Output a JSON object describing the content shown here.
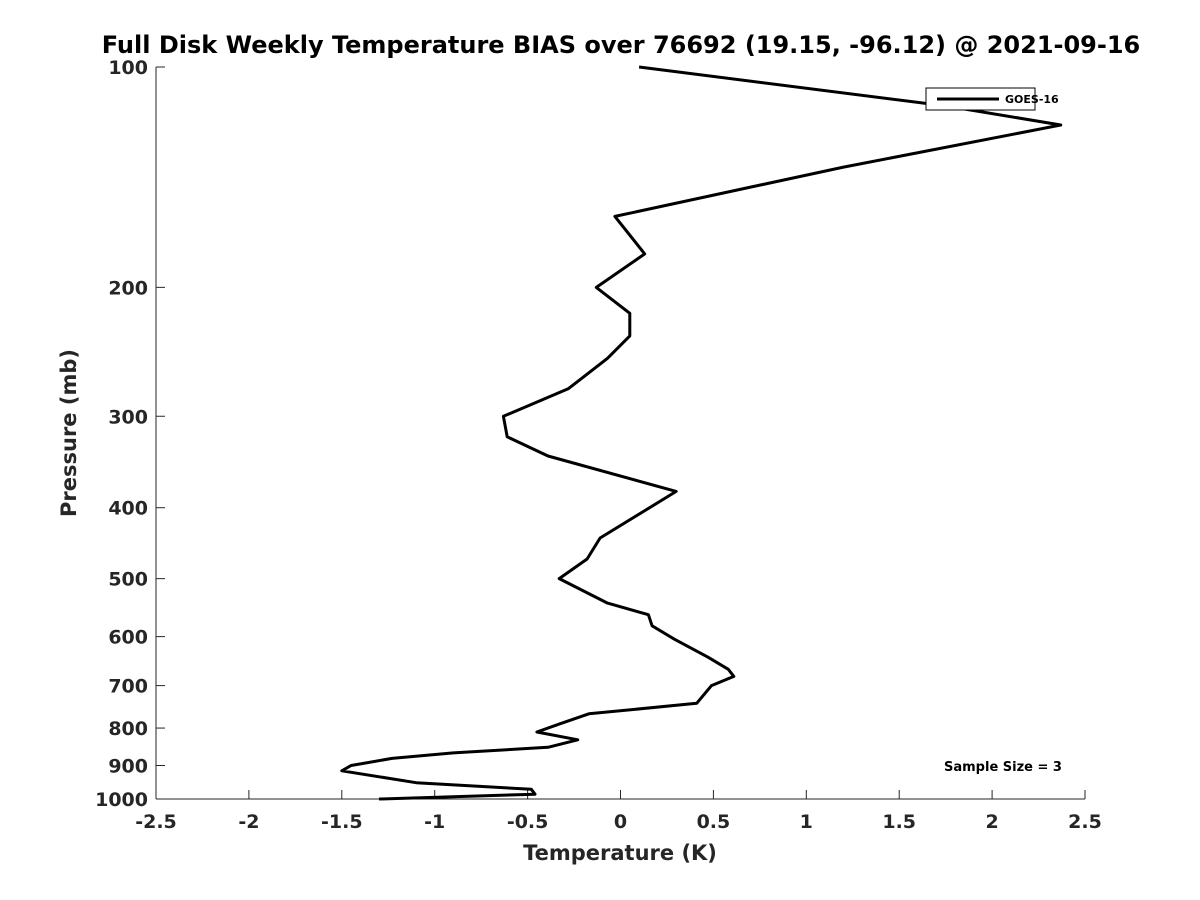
{
  "chart_data": {
    "type": "line",
    "title": "Full Disk Weekly Temperature BIAS over 76692 (19.15, -96.12) @ 2021-09-16",
    "xlabel": "Temperature (K)",
    "ylabel": "Pressure (mb)",
    "xlim": [
      -2.5,
      2.5
    ],
    "ylim": [
      1000,
      100
    ],
    "y_scale": "log",
    "x_ticks": [
      -2.5,
      -2,
      -1.5,
      -1,
      -0.5,
      0,
      0.5,
      1,
      1.5,
      2,
      2.5
    ],
    "x_tick_labels": [
      "-2.5",
      "-2",
      "-1.5",
      "-1",
      "-0.5",
      "0",
      "0.5",
      "1",
      "1.5",
      "2",
      "2.5"
    ],
    "y_ticks": [
      100,
      200,
      300,
      400,
      500,
      600,
      700,
      800,
      900,
      1000
    ],
    "y_tick_labels": [
      "100",
      "200",
      "300",
      "400",
      "500",
      "600",
      "700",
      "800",
      "900",
      "1000"
    ],
    "grid": false,
    "legend_position": "top-right",
    "series": [
      {
        "name": "GOES-16",
        "color": "#000000",
        "x": [
          0.1,
          1.75,
          2.37,
          1.2,
          -0.03,
          0.13,
          -0.13,
          0.05,
          0.05,
          -0.07,
          -0.28,
          -0.63,
          -0.61,
          -0.39,
          0.3,
          -0.11,
          -0.18,
          -0.33,
          -0.07,
          0.15,
          0.17,
          0.29,
          0.47,
          0.58,
          0.61,
          0.49,
          0.41,
          -0.17,
          -0.33,
          -0.45,
          -0.23,
          -0.39,
          -0.9,
          -1.23,
          -1.45,
          -1.5,
          -1.1,
          -0.48,
          -0.46,
          -1.3
        ],
        "y": [
          100,
          113,
          120,
          137,
          160,
          180,
          200,
          217,
          233,
          250,
          275,
          300,
          320,
          340,
          380,
          440,
          470,
          500,
          540,
          560,
          580,
          605,
          640,
          665,
          680,
          700,
          740,
          765,
          790,
          810,
          830,
          850,
          865,
          880,
          900,
          915,
          950,
          970,
          985,
          1000
        ]
      }
    ],
    "annotation": "Sample Size = 3"
  }
}
